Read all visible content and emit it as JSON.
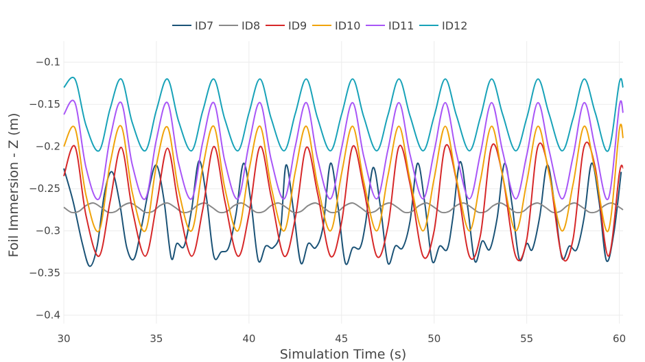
{
  "chart_data": {
    "type": "line",
    "title": "",
    "xlabel": "Simulation Time (s)",
    "ylabel": "Foil Immersion - Z (m)",
    "xlim": [
      30,
      60.2
    ],
    "ylim": [
      -0.41,
      -0.075
    ],
    "xticks": [
      30,
      35,
      40,
      45,
      50,
      55,
      60
    ],
    "xtick_labels": [
      "30",
      "35",
      "40",
      "45",
      "50",
      "55",
      "60"
    ],
    "yticks": [
      -0.1,
      -0.15,
      -0.2,
      -0.25,
      -0.3,
      -0.35,
      -0.4
    ],
    "ytick_labels": [
      "−0.1",
      "−0.15",
      "−0.2",
      "−0.25",
      "−0.3",
      "−0.35",
      "−0.4"
    ],
    "grid": true,
    "legend_position": "top-center",
    "series": [
      {
        "name": "ID7",
        "color": "#1a5276",
        "x": [
          30.0,
          30.5,
          31.0,
          31.4,
          31.8,
          32.2,
          32.6,
          33.0,
          33.4,
          33.8,
          34.2,
          34.6,
          35.0,
          35.4,
          35.8,
          36.1,
          36.5,
          36.9,
          37.3,
          37.7,
          38.1,
          38.5,
          38.9,
          39.3,
          39.7,
          40.1,
          40.5,
          40.9,
          41.3,
          41.7,
          42.0,
          42.4,
          42.8,
          43.2,
          43.6,
          44.0,
          44.4,
          44.8,
          45.2,
          45.6,
          46.0,
          46.3,
          46.7,
          47.1,
          47.5,
          47.9,
          48.3,
          48.7,
          49.1,
          49.5,
          49.9,
          50.3,
          50.7,
          51.0,
          51.4,
          51.8,
          52.2,
          52.6,
          53.0,
          53.4,
          53.8,
          54.2,
          54.6,
          55.0,
          55.3,
          55.7,
          56.1,
          56.5,
          56.9,
          57.3,
          57.7,
          58.1,
          58.5,
          58.9,
          59.3,
          59.7,
          60.1
        ],
        "y": [
          -0.226,
          -0.265,
          -0.315,
          -0.342,
          -0.318,
          -0.255,
          -0.23,
          -0.265,
          -0.32,
          -0.333,
          -0.295,
          -0.25,
          -0.222,
          -0.262,
          -0.332,
          -0.315,
          -0.318,
          -0.275,
          -0.217,
          -0.26,
          -0.33,
          -0.325,
          -0.32,
          -0.28,
          -0.22,
          -0.265,
          -0.335,
          -0.318,
          -0.32,
          -0.3,
          -0.222,
          -0.275,
          -0.338,
          -0.315,
          -0.32,
          -0.295,
          -0.22,
          -0.27,
          -0.338,
          -0.32,
          -0.32,
          -0.29,
          -0.225,
          -0.272,
          -0.338,
          -0.318,
          -0.32,
          -0.288,
          -0.22,
          -0.268,
          -0.336,
          -0.318,
          -0.322,
          -0.286,
          -0.218,
          -0.27,
          -0.336,
          -0.312,
          -0.322,
          -0.285,
          -0.22,
          -0.268,
          -0.334,
          -0.315,
          -0.322,
          -0.283,
          -0.222,
          -0.268,
          -0.332,
          -0.318,
          -0.322,
          -0.284,
          -0.22,
          -0.264,
          -0.335,
          -0.303,
          -0.23
        ]
      },
      {
        "name": "ID8",
        "color": "#888888",
        "x": [
          30.0,
          30.4,
          30.8,
          31.2,
          31.6,
          32.0,
          32.4,
          32.8,
          33.2,
          33.6,
          34.0,
          34.4,
          34.8,
          35.2,
          35.6,
          36.0,
          36.4,
          36.8,
          37.2,
          37.6,
          38.0,
          38.4,
          38.8,
          39.2,
          39.6,
          40.0,
          40.4,
          40.8,
          41.2,
          41.6,
          42.0,
          42.4,
          42.8,
          43.2,
          43.6,
          44.0,
          44.4,
          44.8,
          45.2,
          45.6,
          46.0,
          46.4,
          46.8,
          47.2,
          47.6,
          48.0,
          48.4,
          48.8,
          49.2,
          49.6,
          50.0,
          50.4,
          50.8,
          51.2,
          51.6,
          52.0,
          52.4,
          52.8,
          53.2,
          53.6,
          54.0,
          54.4,
          54.8,
          55.2,
          55.6,
          56.0,
          56.4,
          56.8,
          57.2,
          57.6,
          58.0,
          58.4,
          58.8,
          59.2,
          59.6,
          60.0,
          60.2
        ],
        "y": [
          -0.272,
          -0.278,
          -0.277,
          -0.27,
          -0.267,
          -0.272,
          -0.278,
          -0.277,
          -0.27,
          -0.267,
          -0.272,
          -0.278,
          -0.277,
          -0.27,
          -0.267,
          -0.272,
          -0.278,
          -0.277,
          -0.27,
          -0.267,
          -0.272,
          -0.278,
          -0.277,
          -0.27,
          -0.267,
          -0.272,
          -0.278,
          -0.277,
          -0.27,
          -0.267,
          -0.272,
          -0.278,
          -0.277,
          -0.27,
          -0.267,
          -0.272,
          -0.278,
          -0.277,
          -0.27,
          -0.267,
          -0.272,
          -0.278,
          -0.277,
          -0.27,
          -0.267,
          -0.272,
          -0.278,
          -0.277,
          -0.27,
          -0.267,
          -0.272,
          -0.278,
          -0.277,
          -0.27,
          -0.267,
          -0.272,
          -0.278,
          -0.277,
          -0.27,
          -0.267,
          -0.272,
          -0.278,
          -0.277,
          -0.27,
          -0.267,
          -0.272,
          -0.278,
          -0.277,
          -0.27,
          -0.267,
          -0.272,
          -0.278,
          -0.277,
          -0.27,
          -0.267,
          -0.272,
          -0.275
        ]
      },
      {
        "name": "ID9",
        "color": "#d62728",
        "x": [
          30.0,
          30.6,
          31.2,
          31.9,
          32.5,
          33.1,
          33.7,
          34.4,
          35.0,
          35.6,
          36.2,
          36.9,
          37.5,
          38.1,
          38.7,
          39.4,
          40.0,
          40.6,
          41.2,
          41.9,
          42.5,
          43.1,
          43.7,
          44.4,
          45.0,
          45.6,
          46.2,
          46.9,
          47.5,
          48.1,
          48.7,
          49.4,
          50.0,
          50.6,
          51.2,
          51.9,
          52.5,
          53.1,
          53.7,
          54.4,
          55.0,
          55.6,
          56.2,
          56.9,
          57.5,
          58.1,
          58.7,
          59.4,
          60.0,
          60.2
        ],
        "y": [
          -0.235,
          -0.2,
          -0.282,
          -0.33,
          -0.265,
          -0.201,
          -0.275,
          -0.33,
          -0.27,
          -0.202,
          -0.27,
          -0.33,
          -0.275,
          -0.2,
          -0.265,
          -0.33,
          -0.28,
          -0.2,
          -0.26,
          -0.33,
          -0.285,
          -0.201,
          -0.255,
          -0.33,
          -0.29,
          -0.2,
          -0.25,
          -0.33,
          -0.295,
          -0.2,
          -0.245,
          -0.33,
          -0.3,
          -0.2,
          -0.24,
          -0.33,
          -0.305,
          -0.2,
          -0.235,
          -0.33,
          -0.31,
          -0.2,
          -0.23,
          -0.33,
          -0.31,
          -0.2,
          -0.225,
          -0.33,
          -0.232,
          -0.225
        ]
      },
      {
        "name": "ID10",
        "color": "#f0a30a",
        "x": [
          30.0,
          30.6,
          31.2,
          31.9,
          32.5,
          33.1,
          33.7,
          34.4,
          35.0,
          35.6,
          36.2,
          36.9,
          37.5,
          38.1,
          38.7,
          39.4,
          40.0,
          40.6,
          41.2,
          41.9,
          42.5,
          43.1,
          43.7,
          44.4,
          45.0,
          45.6,
          46.2,
          46.9,
          47.5,
          48.1,
          48.7,
          49.4,
          50.0,
          50.6,
          51.2,
          51.9,
          52.5,
          53.1,
          53.7,
          54.4,
          55.0,
          55.6,
          56.2,
          56.9,
          57.5,
          58.1,
          58.7,
          59.4,
          60.0,
          60.2
        ],
        "y": [
          -0.2,
          -0.178,
          -0.258,
          -0.3,
          -0.22,
          -0.176,
          -0.255,
          -0.3,
          -0.222,
          -0.177,
          -0.252,
          -0.3,
          -0.225,
          -0.176,
          -0.25,
          -0.3,
          -0.228,
          -0.176,
          -0.248,
          -0.3,
          -0.23,
          -0.176,
          -0.245,
          -0.3,
          -0.232,
          -0.176,
          -0.242,
          -0.3,
          -0.235,
          -0.176,
          -0.24,
          -0.3,
          -0.238,
          -0.176,
          -0.238,
          -0.3,
          -0.24,
          -0.176,
          -0.235,
          -0.3,
          -0.242,
          -0.176,
          -0.232,
          -0.3,
          -0.245,
          -0.176,
          -0.23,
          -0.3,
          -0.18,
          -0.19
        ]
      },
      {
        "name": "ID11",
        "color": "#a855f7",
        "x": [
          30.0,
          30.6,
          31.2,
          31.9,
          32.5,
          33.1,
          33.7,
          34.4,
          35.0,
          35.6,
          36.2,
          36.9,
          37.5,
          38.1,
          38.7,
          39.4,
          40.0,
          40.6,
          41.2,
          41.9,
          42.5,
          43.1,
          43.7,
          44.4,
          45.0,
          45.6,
          46.2,
          46.9,
          47.5,
          48.1,
          48.7,
          49.4,
          50.0,
          50.6,
          51.2,
          51.9,
          52.5,
          53.1,
          53.7,
          54.4,
          55.0,
          55.6,
          56.2,
          56.9,
          57.5,
          58.1,
          58.7,
          59.4,
          60.0,
          60.2
        ],
        "y": [
          -0.162,
          -0.148,
          -0.225,
          -0.262,
          -0.19,
          -0.148,
          -0.222,
          -0.262,
          -0.192,
          -0.148,
          -0.22,
          -0.262,
          -0.195,
          -0.148,
          -0.218,
          -0.262,
          -0.197,
          -0.148,
          -0.216,
          -0.262,
          -0.2,
          -0.148,
          -0.214,
          -0.262,
          -0.202,
          -0.148,
          -0.212,
          -0.262,
          -0.204,
          -0.148,
          -0.21,
          -0.262,
          -0.206,
          -0.148,
          -0.208,
          -0.262,
          -0.208,
          -0.148,
          -0.206,
          -0.262,
          -0.21,
          -0.148,
          -0.204,
          -0.262,
          -0.212,
          -0.148,
          -0.202,
          -0.262,
          -0.152,
          -0.16
        ]
      },
      {
        "name": "ID12",
        "color": "#17a2b8",
        "x": [
          30.0,
          30.6,
          31.2,
          31.9,
          32.5,
          33.1,
          33.7,
          34.4,
          35.0,
          35.6,
          36.2,
          36.9,
          37.5,
          38.1,
          38.7,
          39.4,
          40.0,
          40.6,
          41.2,
          41.9,
          42.5,
          43.1,
          43.7,
          44.4,
          45.0,
          45.6,
          46.2,
          46.9,
          47.5,
          48.1,
          48.7,
          49.4,
          50.0,
          50.6,
          51.2,
          51.9,
          52.5,
          53.1,
          53.7,
          54.4,
          55.0,
          55.6,
          56.2,
          56.9,
          57.5,
          58.1,
          58.7,
          59.4,
          60.0,
          60.2
        ],
        "y": [
          -0.13,
          -0.12,
          -0.175,
          -0.205,
          -0.155,
          -0.12,
          -0.172,
          -0.205,
          -0.157,
          -0.12,
          -0.17,
          -0.205,
          -0.158,
          -0.12,
          -0.168,
          -0.205,
          -0.16,
          -0.12,
          -0.167,
          -0.205,
          -0.161,
          -0.12,
          -0.166,
          -0.205,
          -0.162,
          -0.12,
          -0.165,
          -0.205,
          -0.163,
          -0.12,
          -0.164,
          -0.205,
          -0.164,
          -0.12,
          -0.163,
          -0.205,
          -0.165,
          -0.12,
          -0.162,
          -0.205,
          -0.166,
          -0.12,
          -0.161,
          -0.205,
          -0.167,
          -0.12,
          -0.16,
          -0.205,
          -0.124,
          -0.13
        ]
      }
    ]
  }
}
